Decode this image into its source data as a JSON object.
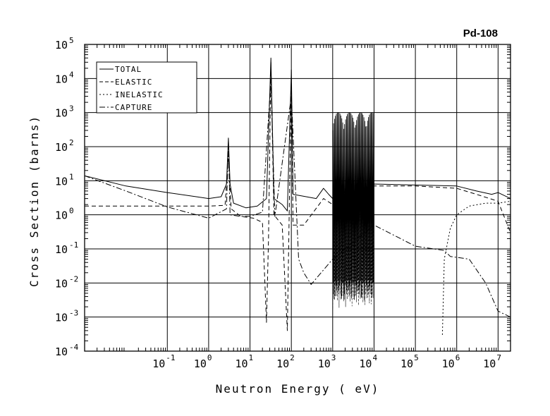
{
  "chart_data": {
    "type": "line",
    "title": "Pd-108",
    "xlabel": "Neutron Energy ( eV)",
    "ylabel": "Cross Section (barns)",
    "xscale": "log",
    "yscale": "log",
    "xlim": [
      0.001,
      20000000
    ],
    "ylim": [
      0.0001,
      100000
    ],
    "grid": true,
    "legend_position": "top-left",
    "x_ticks": [
      {
        "value": 0.1,
        "base": "10",
        "exp": "-1"
      },
      {
        "value": 1,
        "base": "10",
        "exp": "0"
      },
      {
        "value": 10,
        "base": "10",
        "exp": "1"
      },
      {
        "value": 100,
        "base": "10",
        "exp": "2"
      },
      {
        "value": 1000,
        "base": "10",
        "exp": "3"
      },
      {
        "value": 10000,
        "base": "10",
        "exp": "4"
      },
      {
        "value": 100000,
        "base": "10",
        "exp": "5"
      },
      {
        "value": 1000000,
        "base": "10",
        "exp": "6"
      },
      {
        "value": 10000000,
        "base": "10",
        "exp": "7"
      }
    ],
    "y_ticks": [
      {
        "value": 0.0001,
        "base": "10",
        "exp": "-4"
      },
      {
        "value": 0.001,
        "base": "10",
        "exp": "-3"
      },
      {
        "value": 0.01,
        "base": "10",
        "exp": "-2"
      },
      {
        "value": 0.1,
        "base": "10",
        "exp": "-1"
      },
      {
        "value": 1,
        "base": "10",
        "exp": "0"
      },
      {
        "value": 10,
        "base": "10",
        "exp": "1"
      },
      {
        "value": 100,
        "base": "10",
        "exp": "2"
      },
      {
        "value": 1000,
        "base": "10",
        "exp": "3"
      },
      {
        "value": 10000,
        "base": "10",
        "exp": "4"
      },
      {
        "value": 100000,
        "base": "10",
        "exp": "5"
      }
    ],
    "series": [
      {
        "name": "TOTAL",
        "dash": "solid",
        "points": [
          [
            0.001,
            14
          ],
          [
            0.01,
            7
          ],
          [
            0.1,
            4.5
          ],
          [
            0.5,
            3.4
          ],
          [
            1,
            3.0
          ],
          [
            2,
            3.4
          ],
          [
            2.7,
            8
          ],
          [
            3.0,
            180
          ],
          [
            3.3,
            8
          ],
          [
            4,
            2.2
          ],
          [
            8,
            1.6
          ],
          [
            15,
            1.8
          ],
          [
            25,
            3
          ],
          [
            32,
            40000
          ],
          [
            38,
            3
          ],
          [
            60,
            2
          ],
          [
            80,
            1.3
          ],
          [
            100,
            18000
          ],
          [
            110,
            4
          ],
          [
            200,
            3.5
          ],
          [
            400,
            3.0
          ],
          [
            600,
            6
          ],
          [
            800,
            4
          ],
          [
            1000,
            3
          ],
          [
            2000,
            2.5
          ],
          [
            4000,
            3
          ],
          [
            8000,
            5
          ],
          [
            10000,
            8
          ],
          [
            100000,
            7.5
          ],
          [
            1000000,
            7
          ],
          [
            3000000,
            5
          ],
          [
            7000000,
            4
          ],
          [
            10000000,
            4.5
          ],
          [
            20000000,
            3
          ]
        ]
      },
      {
        "name": "ELASTIC",
        "dash": "6 4",
        "points": [
          [
            0.001,
            1.8
          ],
          [
            0.1,
            1.8
          ],
          [
            1,
            1.8
          ],
          [
            2.5,
            1.9
          ],
          [
            3.0,
            60
          ],
          [
            3.5,
            1.5
          ],
          [
            6,
            0.9
          ],
          [
            12,
            0.8
          ],
          [
            20,
            0.6
          ],
          [
            25,
            0.0007
          ],
          [
            28,
            0.2
          ],
          [
            32,
            30000
          ],
          [
            38,
            1
          ],
          [
            60,
            0.5
          ],
          [
            80,
            0.0004
          ],
          [
            100,
            10000
          ],
          [
            110,
            0.5
          ],
          [
            200,
            0.5
          ],
          [
            600,
            3
          ],
          [
            1000,
            2
          ],
          [
            10000,
            7
          ],
          [
            100000,
            7
          ],
          [
            1000000,
            6
          ],
          [
            3000000,
            4
          ],
          [
            10000000,
            2.5
          ],
          [
            20000000,
            0.3
          ]
        ]
      },
      {
        "name": "INELASTIC",
        "dash": "2 3",
        "points": [
          [
            450000,
            0.0003
          ],
          [
            500000,
            0.05
          ],
          [
            700000,
            0.4
          ],
          [
            1000000,
            1.0
          ],
          [
            2000000,
            1.8
          ],
          [
            5000000,
            2.2
          ],
          [
            10000000,
            2.2
          ],
          [
            20000000,
            2.5
          ]
        ]
      },
      {
        "name": "CAPTURE",
        "dash": "8 3 2 3",
        "points": [
          [
            0.001,
            14
          ],
          [
            0.01,
            5
          ],
          [
            0.1,
            1.7
          ],
          [
            1,
            0.8
          ],
          [
            2.7,
            1.5
          ],
          [
            3.0,
            130
          ],
          [
            3.3,
            1
          ],
          [
            6,
            0.9
          ],
          [
            10,
            0.9
          ],
          [
            20,
            1.2
          ],
          [
            32,
            9000
          ],
          [
            40,
            0.9
          ],
          [
            100,
            3000
          ],
          [
            150,
            0.05
          ],
          [
            200,
            0.02
          ],
          [
            300,
            0.009
          ],
          [
            1000,
            0.05
          ],
          [
            10000,
            0.5
          ],
          [
            100000,
            0.12
          ],
          [
            500000,
            0.09
          ],
          [
            700000,
            0.06
          ],
          [
            2000000,
            0.05
          ],
          [
            5000000,
            0.01
          ],
          [
            10000000,
            0.0015
          ],
          [
            20000000,
            0.001
          ]
        ]
      }
    ],
    "resonance_band": {
      "x_start": 1000,
      "x_end": 10000,
      "total_peak": 1000,
      "elastic_low": 0.003
    }
  }
}
